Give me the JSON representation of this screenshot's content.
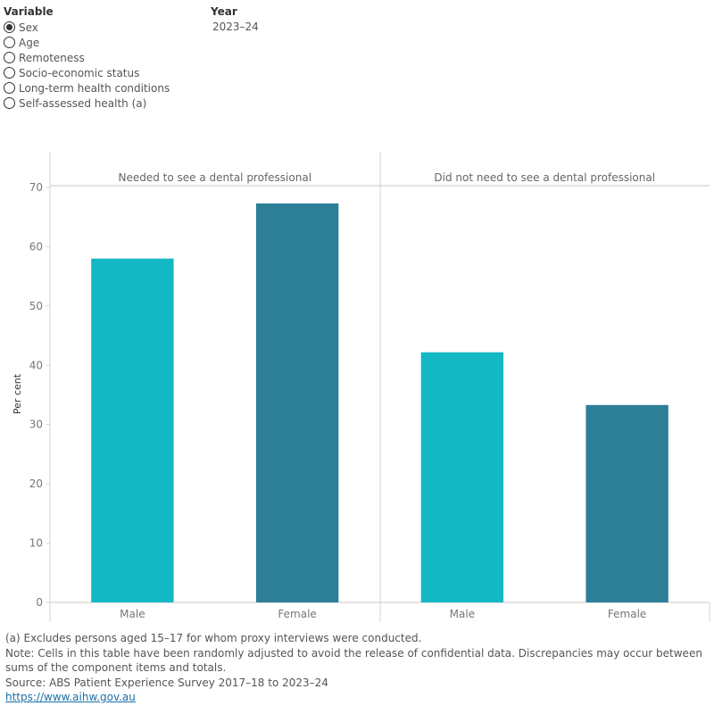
{
  "filters": {
    "variable_title": "Variable",
    "variable_options": [
      {
        "label": "Sex",
        "selected": true
      },
      {
        "label": "Age",
        "selected": false
      },
      {
        "label": "Remoteness",
        "selected": false
      },
      {
        "label": "Socio-economic status",
        "selected": false
      },
      {
        "label": "Long-term health conditions",
        "selected": false
      },
      {
        "label": "Self-assessed health (a)",
        "selected": false
      }
    ],
    "year_title": "Year",
    "year_value": "2023–24"
  },
  "chart_data": {
    "type": "bar",
    "ylabel": "Per cent",
    "ylim": [
      0,
      70
    ],
    "yticks": [
      0,
      10,
      20,
      30,
      40,
      50,
      60,
      70
    ],
    "grid": false,
    "colors": {
      "Male": "#14b8c4",
      "Female": "#2c7f97"
    },
    "panels": [
      {
        "title": "Needed to see a dental professional",
        "categories": [
          "Male",
          "Female"
        ],
        "values": [
          58,
          67.3
        ]
      },
      {
        "title": "Did not need to see a dental professional",
        "categories": [
          "Male",
          "Female"
        ],
        "values": [
          42.2,
          33.3
        ]
      }
    ]
  },
  "notes": {
    "footnote": "(a) Excludes persons aged 15–17 for whom proxy interviews were conducted.",
    "note": "Note: Cells in this table have been randomly adjusted to avoid the release of confidential data. Discrepancies may occur between sums of the component items and totals.",
    "source": "Source: ABS Patient Experience Survey 2017–18 to 2023–24",
    "link": "https://www.aihw.gov.au"
  }
}
